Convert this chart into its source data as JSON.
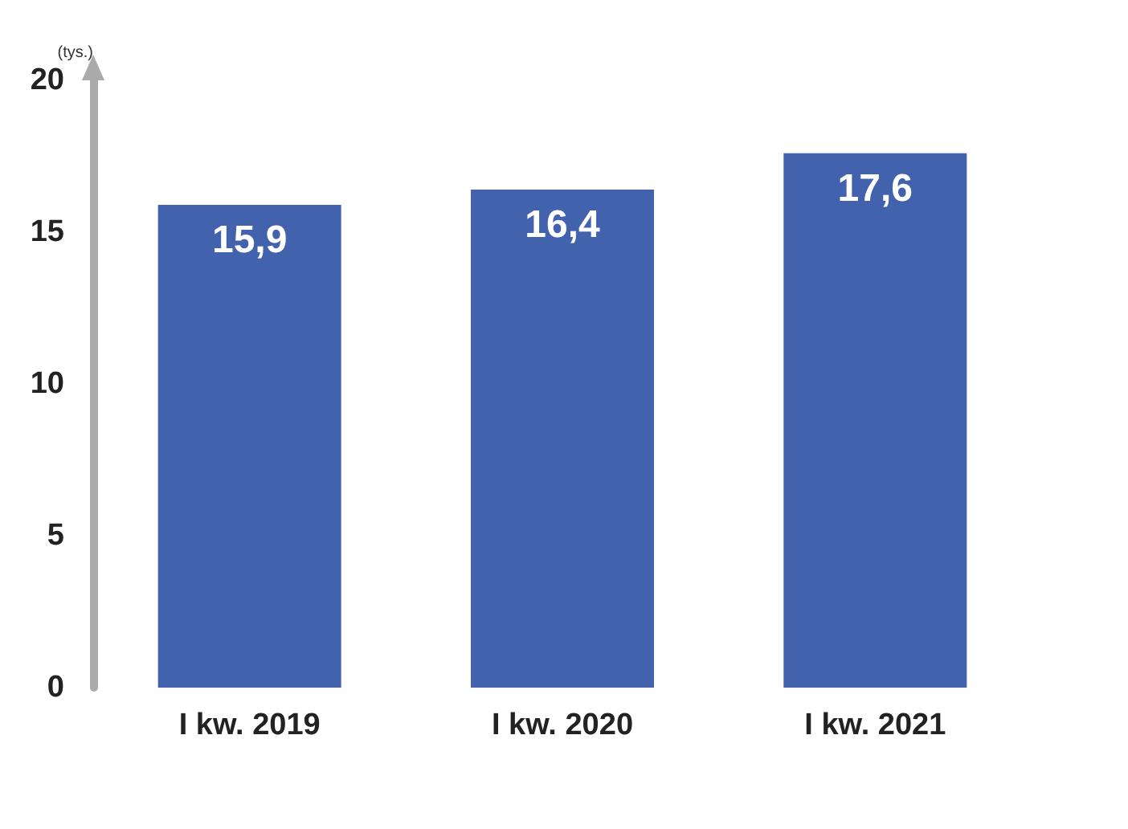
{
  "chart_data": {
    "type": "bar",
    "ylabel": "(tys.)",
    "categories": [
      "I kw. 2019",
      "I kw. 2020",
      "I kw. 2021"
    ],
    "values": [
      15.9,
      16.4,
      17.6
    ],
    "color": "#4262ad",
    "value_labels": [
      "15,9",
      "16,4",
      "17,6"
    ],
    "ylim": [
      0,
      20
    ],
    "yticks": [
      0,
      5,
      10,
      15,
      20
    ],
    "grid": false
  }
}
